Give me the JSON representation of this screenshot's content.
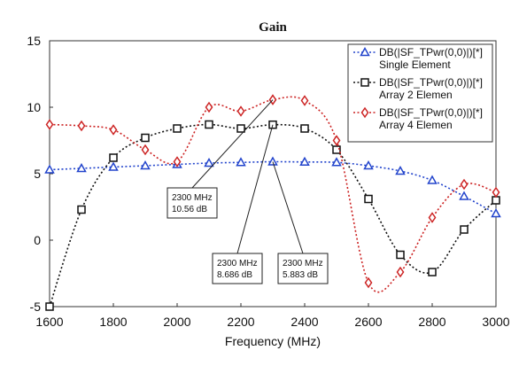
{
  "chart_data": {
    "type": "line",
    "title": "Gain",
    "xlabel": "Frequency (MHz)",
    "ylabel": "",
    "xlim": [
      1600,
      3000
    ],
    "ylim": [
      -5,
      15
    ],
    "xticks": [
      1600,
      1800,
      2000,
      2200,
      2400,
      2600,
      2800,
      3000
    ],
    "yticks": [
      15,
      10,
      5,
      0,
      -5
    ],
    "grid": false,
    "legend_position": "top-right",
    "series": [
      {
        "name": "DB(|SF_TPwr(0,0)|)[*]",
        "sublabel": "Single Element",
        "color": "#2244cc",
        "marker": "triangle",
        "x": [
          1600,
          1700,
          1800,
          1900,
          2000,
          2100,
          2200,
          2300,
          2400,
          2500,
          2600,
          2700,
          2800,
          2900,
          3000
        ],
        "y": [
          5.3,
          5.4,
          5.5,
          5.6,
          5.7,
          5.8,
          5.85,
          5.9,
          5.88,
          5.85,
          5.6,
          5.2,
          4.5,
          3.3,
          2.0
        ]
      },
      {
        "name": "DB(|SF_TPwr(0,0)|)[*]",
        "sublabel": "Array 2 Elemen",
        "color": "#111111",
        "marker": "square",
        "x": [
          1600,
          1700,
          1800,
          1900,
          2000,
          2100,
          2200,
          2300,
          2400,
          2500,
          2600,
          2700,
          2800,
          2900,
          3000
        ],
        "y": [
          -5.0,
          2.3,
          6.2,
          7.7,
          8.4,
          8.7,
          8.4,
          8.686,
          8.4,
          6.8,
          3.1,
          -1.1,
          -2.4,
          0.8,
          3.0
        ]
      },
      {
        "name": "DB(|SF_TPwr(0,0)|)[*]",
        "sublabel": "Array 4 Elemen",
        "color": "#cc2222",
        "marker": "diamond",
        "x": [
          1600,
          1700,
          1800,
          1900,
          2000,
          2100,
          2200,
          2300,
          2400,
          2500,
          2600,
          2700,
          2800,
          2900,
          3000
        ],
        "y": [
          8.7,
          8.6,
          8.3,
          6.8,
          5.9,
          10.0,
          9.7,
          10.56,
          10.5,
          7.5,
          -3.2,
          -2.4,
          1.7,
          4.2,
          3.6
        ]
      }
    ],
    "annotations": [
      {
        "x": 2300,
        "series": 2,
        "label_line1": "2300 MHz",
        "label_line2": "10.56 dB"
      },
      {
        "x": 2300,
        "series": 1,
        "label_line1": "2300 MHz",
        "label_line2": "8.686 dB"
      },
      {
        "x": 2300,
        "series": 0,
        "label_line1": "2300 MHz",
        "label_line2": "5.883 dB"
      }
    ]
  }
}
